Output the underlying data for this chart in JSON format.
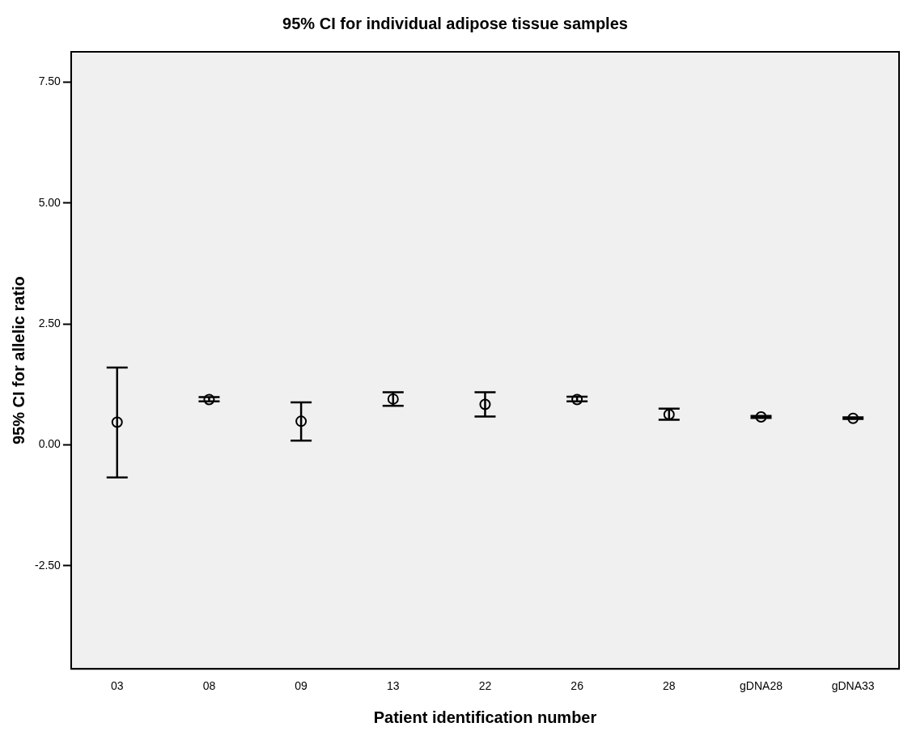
{
  "chart_data": {
    "type": "scatter",
    "title": "95% CI for individual adipose tissue samples",
    "xlabel": "Patient identification number",
    "ylabel": "95% CI for allelic ratio",
    "categories": [
      "03",
      "08",
      "09",
      "13",
      "22",
      "26",
      "28",
      "gDNA28",
      "gDNA33"
    ],
    "series": [
      {
        "color": "#000000",
        "values": [
          0.47,
          0.94,
          0.49,
          0.95,
          0.84,
          0.94,
          0.63,
          0.58,
          0.55
        ],
        "errors": [
          [
            -0.67,
            1.6
          ],
          [
            0.9,
            0.99
          ],
          [
            0.09,
            0.88
          ],
          [
            0.81,
            1.09
          ],
          [
            0.59,
            1.09
          ],
          [
            0.9,
            1.0
          ],
          [
            0.52,
            0.75
          ],
          [
            0.56,
            0.6
          ],
          [
            0.54,
            0.57
          ]
        ]
      }
    ],
    "ylim": [
      -4.63,
      8.13
    ],
    "yticks": [
      {
        "value": -2.5,
        "label": "-2.50"
      },
      {
        "value": 0,
        "label": "0.00"
      },
      {
        "value": 2.5,
        "label": "2.50"
      },
      {
        "value": 5,
        "label": "5.00"
      },
      {
        "value": 7.5,
        "label": "7.50"
      }
    ],
    "grid": false,
    "legend": false,
    "marker": "circle"
  }
}
